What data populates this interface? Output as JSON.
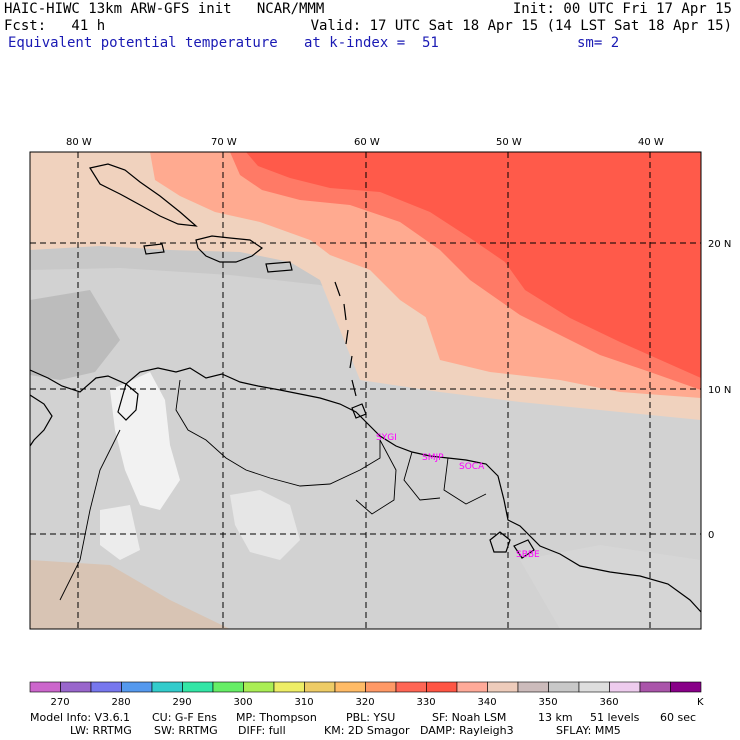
{
  "header": {
    "model_title": "HAIC-HIWC 13km ARW-GFS init   NCAR/MMM",
    "init": "Init: 00 UTC Fri 17 Apr 15",
    "fcst": "Fcst:   41 h",
    "valid": "Valid: 17 UTC Sat 18 Apr 15 (14 LST Sat 18 Apr 15)",
    "field": "Equivalent potential temperature",
    "level": "at k-index =  51",
    "smoothing": "sm= 2"
  },
  "map": {
    "lon_labels": [
      "80 W",
      "70 W",
      "60 W",
      "50 W",
      "40 W"
    ],
    "lat_labels": [
      "20 N",
      "10 N",
      "0"
    ],
    "stations": [
      "SYGI",
      "SMJP",
      "SOCA",
      "SBBE"
    ]
  },
  "colorbar": {
    "colors": [
      "#cc66cc",
      "#9966cc",
      "#7777ee",
      "#5599ee",
      "#33cccc",
      "#33e6a6",
      "#66ee66",
      "#aaee55",
      "#eeee66",
      "#eecc66",
      "#ffbb66",
      "#ff9966",
      "#ff6655",
      "#ff5544",
      "#ffaa99",
      "#eeccbb",
      "#ccbbbb",
      "#c8c8c8",
      "#dedede",
      "#eeccee",
      "#aa55aa",
      "#880088"
    ],
    "tick_labels": [
      "270",
      "280",
      "290",
      "300",
      "310",
      "320",
      "330",
      "340",
      "350",
      "360"
    ],
    "unit": "K"
  },
  "footer": {
    "line1": [
      "Model Info: V3.6.1",
      "CU: G-F Ens",
      "MP: Thompson",
      "PBL: YSU",
      "SF: Noah LSM",
      "13 km",
      "51 levels",
      "60 sec"
    ],
    "line2": [
      "LW: RRTMG",
      "SW: RRTMG",
      "DIFF: full",
      "KM: 2D Smagor",
      "DAMP: Rayleigh3",
      "SFLAY: MM5"
    ]
  },
  "colors": {
    "land_gray": "#c8c8c8",
    "light_gray": "#dcdcdc",
    "white_highlands": "#f5f5f5",
    "peach": "#f0d2be",
    "salmon": "#ffaa90",
    "coral": "#ff7a66",
    "red": "#ff5a4a",
    "coast": "#000000",
    "grid": "#000000"
  }
}
